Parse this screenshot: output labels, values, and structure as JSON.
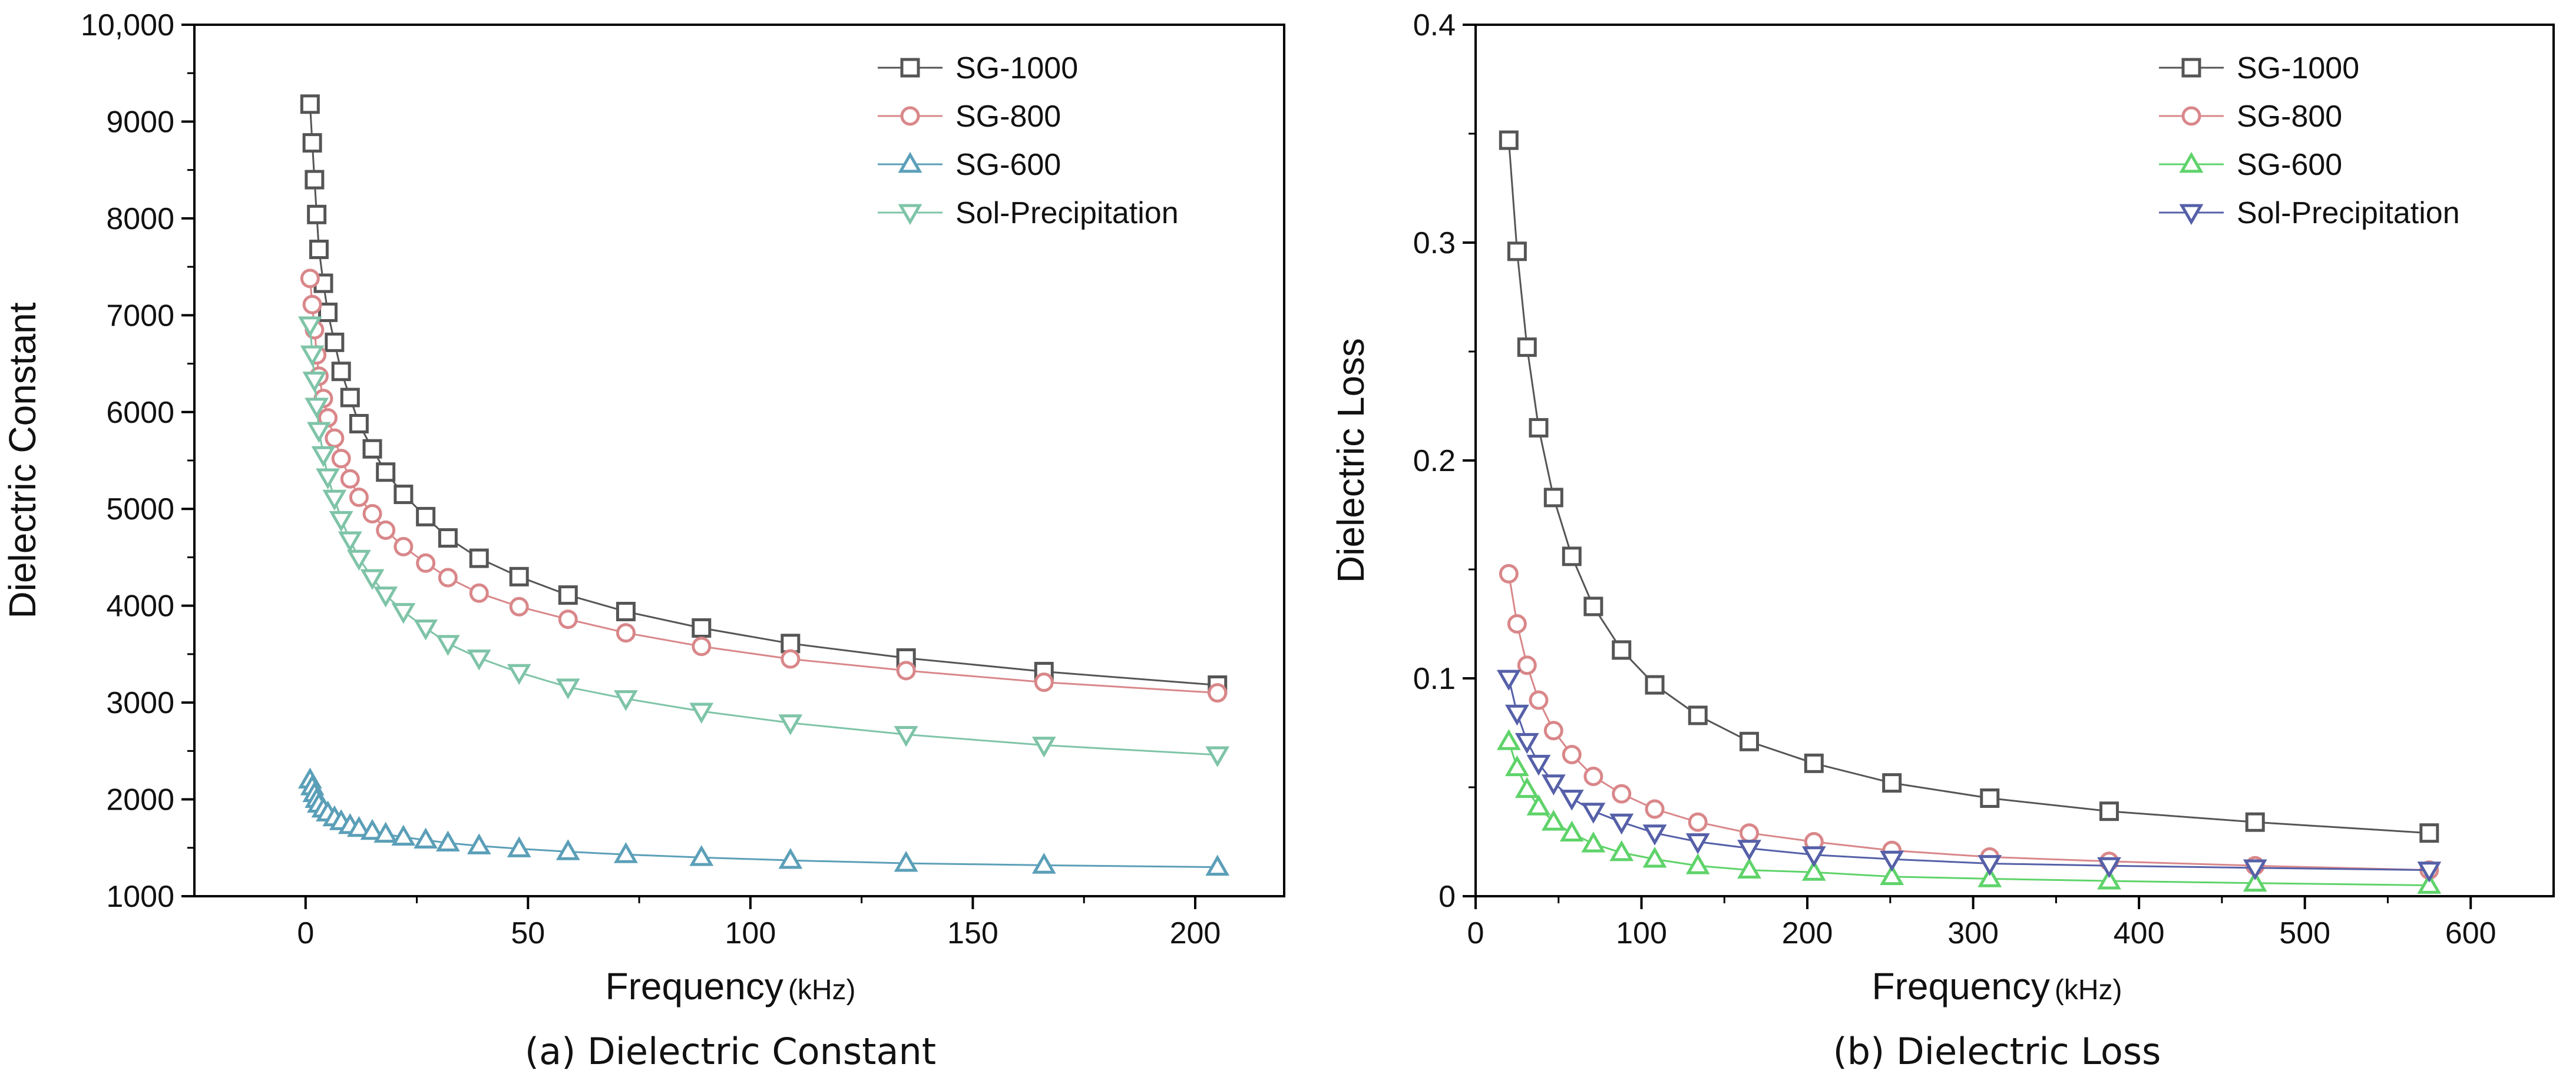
{
  "chart_data": [
    {
      "type": "line",
      "id": "a",
      "title": "(a) Dielectric Constant",
      "xlabel": "Frequency",
      "xunit": "(kHz)",
      "ylabel": "Dielectric Constant",
      "xlim": [
        -25,
        220
      ],
      "ylim": [
        1000,
        10000
      ],
      "xticks": [
        0,
        50,
        100,
        150,
        200
      ],
      "yticks": [
        1000,
        2000,
        3000,
        4000,
        5000,
        6000,
        7000,
        8000,
        9000,
        10000
      ],
      "ytick_labels": [
        "1000",
        "2000",
        "3000",
        "4000",
        "5000",
        "6000",
        "7000",
        "8000",
        "9000",
        "10,000"
      ],
      "x": [
        1,
        1.5,
        2,
        2.5,
        3,
        4,
        5,
        6.5,
        8,
        10,
        12,
        15,
        18,
        22,
        27,
        32,
        39,
        48,
        59,
        72,
        89,
        109,
        135,
        166,
        205
      ],
      "legend_position": "top-right",
      "series": [
        {
          "name": "SG-1000",
          "marker": "square",
          "color": "#555555",
          "values": [
            9180,
            8780,
            8400,
            8040,
            7680,
            7330,
            7030,
            6720,
            6420,
            6150,
            5880,
            5620,
            5380,
            5150,
            4920,
            4700,
            4490,
            4300,
            4110,
            3940,
            3770,
            3610,
            3460,
            3320,
            3180
          ]
        },
        {
          "name": "SG-800",
          "marker": "circle",
          "color": "#d9878a",
          "values": [
            7380,
            7110,
            6850,
            6590,
            6370,
            6140,
            5940,
            5730,
            5520,
            5310,
            5120,
            4950,
            4780,
            4610,
            4440,
            4290,
            4130,
            3990,
            3860,
            3720,
            3580,
            3450,
            3330,
            3210,
            3100
          ]
        },
        {
          "name": "SG-600",
          "marker": "triangle-up",
          "color": "#5b9fb8",
          "values": [
            2200,
            2130,
            2060,
            2000,
            1950,
            1900,
            1860,
            1810,
            1770,
            1730,
            1700,
            1670,
            1640,
            1610,
            1580,
            1550,
            1520,
            1490,
            1460,
            1430,
            1400,
            1370,
            1340,
            1320,
            1300
          ]
        },
        {
          "name": "Sol-Precipitation",
          "marker": "triangle-down",
          "color": "#7fc4a8",
          "values": [
            6900,
            6600,
            6330,
            6060,
            5810,
            5560,
            5330,
            5110,
            4890,
            4680,
            4490,
            4290,
            4110,
            3940,
            3770,
            3610,
            3460,
            3310,
            3160,
            3040,
            2910,
            2790,
            2670,
            2560,
            2460
          ]
        }
      ]
    },
    {
      "type": "line",
      "id": "b",
      "title": "(b) Dielectric Loss",
      "xlabel": "Frequency",
      "xunit": "(kHz)",
      "ylabel": "Dielectric Loss",
      "xlim": [
        0,
        650
      ],
      "ylim": [
        0,
        0.4
      ],
      "xticks": [
        0,
        100,
        200,
        300,
        400,
        500,
        600
      ],
      "yticks": [
        0,
        0.1,
        0.2,
        0.3,
        0.4
      ],
      "ytick_labels": [
        "0",
        "0.1",
        "0.2",
        "0.3",
        "0.4"
      ],
      "x": [
        20,
        25,
        31,
        38,
        47,
        58,
        71,
        88,
        108,
        134,
        165,
        204,
        251,
        310,
        382,
        470,
        575
      ],
      "legend_position": "top-right",
      "series": [
        {
          "name": "SG-1000",
          "marker": "square",
          "color": "#555555",
          "values": [
            0.347,
            0.296,
            0.252,
            0.215,
            0.183,
            0.156,
            0.133,
            0.113,
            0.097,
            0.083,
            0.071,
            0.061,
            0.052,
            0.045,
            0.039,
            0.034,
            0.029
          ]
        },
        {
          "name": "SG-800",
          "marker": "circle",
          "color": "#d9878a",
          "values": [
            0.148,
            0.125,
            0.106,
            0.09,
            0.076,
            0.065,
            0.055,
            0.047,
            0.04,
            0.034,
            0.029,
            0.025,
            0.021,
            0.018,
            0.016,
            0.014,
            0.012
          ]
        },
        {
          "name": "SG-600",
          "marker": "triangle-up",
          "color": "#5fd36a",
          "values": [
            0.071,
            0.059,
            0.049,
            0.041,
            0.034,
            0.029,
            0.024,
            0.02,
            0.017,
            0.014,
            0.012,
            0.011,
            0.009,
            0.008,
            0.007,
            0.006,
            0.005
          ]
        },
        {
          "name": "Sol-Precipitation",
          "marker": "triangle-down",
          "color": "#5560a8",
          "values": [
            0.1,
            0.084,
            0.071,
            0.061,
            0.052,
            0.045,
            0.039,
            0.034,
            0.029,
            0.025,
            0.022,
            0.019,
            0.017,
            0.015,
            0.014,
            0.013,
            0.012
          ]
        }
      ]
    }
  ]
}
